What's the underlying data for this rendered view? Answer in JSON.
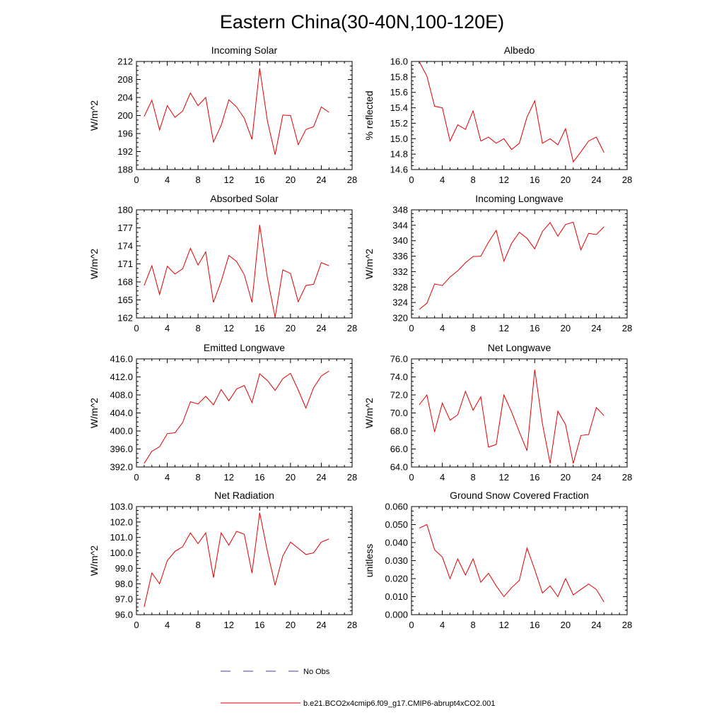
{
  "page_title": "Eastern China(30-40N,100-120E)",
  "legend": {
    "obs_label": "No Obs",
    "obs_color": "#3b3bb8",
    "model_label": "b.e21.BCO2x4cmip6.f09_g17.CMIP6-abrupt4xCO2.001",
    "model_color": "#e00000"
  },
  "chart_data": [
    {
      "type": "line",
      "title": "Incoming Solar",
      "ylabel": "W/m^2",
      "xlim": [
        0,
        28
      ],
      "ylim": [
        188,
        212
      ],
      "xticks": [
        0,
        4,
        8,
        12,
        16,
        20,
        24,
        28
      ],
      "xtick_labels": [
        "0",
        "4",
        "8",
        "12",
        "16",
        "20",
        "24",
        "28"
      ],
      "yticks": [
        188,
        192,
        196,
        200,
        204,
        208,
        212
      ],
      "ytick_labels": [
        "188",
        "192",
        "196",
        "200",
        "204",
        "208",
        "212"
      ],
      "x": [
        1,
        2,
        3,
        4,
        5,
        6,
        7,
        8,
        9,
        10,
        11,
        12,
        13,
        14,
        15,
        16,
        17,
        18,
        19,
        20,
        21,
        22,
        23,
        24,
        25
      ],
      "values": [
        199.8,
        203.4,
        196.8,
        202.2,
        199.6,
        201.0,
        205.0,
        202.2,
        204.0,
        194.1,
        197.8,
        203.5,
        201.9,
        199.4,
        194.7,
        210.5,
        198.8,
        191.3,
        200.1,
        200.0,
        193.5,
        196.9,
        197.5,
        201.9,
        200.7
      ]
    },
    {
      "type": "line",
      "title": "Albedo",
      "ylabel": "% reflected",
      "xlim": [
        0,
        28
      ],
      "ylim": [
        14.6,
        16.0
      ],
      "xticks": [
        0,
        4,
        8,
        12,
        16,
        20,
        24,
        28
      ],
      "xtick_labels": [
        "0",
        "4",
        "8",
        "12",
        "16",
        "20",
        "24",
        "28"
      ],
      "yticks": [
        14.6,
        14.8,
        15.0,
        15.2,
        15.4,
        15.6,
        15.8,
        16.0
      ],
      "ytick_labels": [
        "14.6",
        "14.8",
        "15.0",
        "15.2",
        "15.4",
        "15.6",
        "15.8",
        "16.0"
      ],
      "x": [
        1,
        2,
        3,
        4,
        5,
        6,
        7,
        8,
        9,
        10,
        11,
        12,
        13,
        14,
        15,
        16,
        17,
        18,
        19,
        20,
        21,
        22,
        23,
        24,
        25
      ],
      "values": [
        16.0,
        15.81,
        15.42,
        15.4,
        14.97,
        15.18,
        15.12,
        15.36,
        14.97,
        15.02,
        14.94,
        15.0,
        14.86,
        14.94,
        15.28,
        15.49,
        14.94,
        15.0,
        14.92,
        15.13,
        14.7,
        14.83,
        14.97,
        15.02,
        14.82
      ]
    },
    {
      "type": "line",
      "title": "Absorbed Solar",
      "ylabel": "W/m^2",
      "xlim": [
        0,
        28
      ],
      "ylim": [
        162,
        180
      ],
      "xticks": [
        0,
        4,
        8,
        12,
        16,
        20,
        24,
        28
      ],
      "xtick_labels": [
        "0",
        "4",
        "8",
        "12",
        "16",
        "20",
        "24",
        "28"
      ],
      "yticks": [
        162,
        165,
        168,
        171,
        174,
        177,
        180
      ],
      "ytick_labels": [
        "162",
        "165",
        "168",
        "171",
        "174",
        "177",
        "180"
      ],
      "x": [
        1,
        2,
        3,
        4,
        5,
        6,
        7,
        8,
        9,
        10,
        11,
        12,
        13,
        14,
        15,
        16,
        17,
        18,
        19,
        20,
        21,
        22,
        23,
        24,
        25
      ],
      "values": [
        167.4,
        170.7,
        165.9,
        170.6,
        169.3,
        170.2,
        173.6,
        170.8,
        173.0,
        164.6,
        168.1,
        172.4,
        171.4,
        169.2,
        164.6,
        177.5,
        168.7,
        162.1,
        170.0,
        169.4,
        164.7,
        167.4,
        167.6,
        171.2,
        170.7
      ]
    },
    {
      "type": "line",
      "title": "Incoming Longwave",
      "ylabel": "W/m^2",
      "xlim": [
        0,
        28
      ],
      "ylim": [
        320,
        348
      ],
      "xticks": [
        0,
        4,
        8,
        12,
        16,
        20,
        24,
        28
      ],
      "xtick_labels": [
        "0",
        "4",
        "8",
        "12",
        "16",
        "20",
        "24",
        "28"
      ],
      "yticks": [
        320,
        324,
        328,
        332,
        336,
        340,
        344,
        348
      ],
      "ytick_labels": [
        "320",
        "324",
        "328",
        "332",
        "336",
        "340",
        "344",
        "348"
      ],
      "x": [
        1,
        2,
        3,
        4,
        5,
        6,
        7,
        8,
        9,
        10,
        11,
        12,
        13,
        14,
        15,
        16,
        17,
        18,
        19,
        20,
        21,
        22,
        23,
        24,
        25
      ],
      "values": [
        322.2,
        323.8,
        328.8,
        328.4,
        330.6,
        332.2,
        334.3,
        335.9,
        336.0,
        339.6,
        342.7,
        334.7,
        339.3,
        342.2,
        340.6,
        337.9,
        342.4,
        344.7,
        341.2,
        344.2,
        344.8,
        337.6,
        341.9,
        341.6,
        343.6
      ]
    },
    {
      "type": "line",
      "title": "Emitted Longwave",
      "ylabel": "W/m^2",
      "xlim": [
        0,
        28
      ],
      "ylim": [
        392,
        416
      ],
      "xticks": [
        0,
        4,
        8,
        12,
        16,
        20,
        24,
        28
      ],
      "xtick_labels": [
        "0",
        "4",
        "8",
        "12",
        "16",
        "20",
        "24",
        "28"
      ],
      "yticks": [
        392,
        396,
        400,
        404,
        408,
        412,
        416
      ],
      "ytick_labels": [
        "392.0",
        "396.0",
        "400.0",
        "404.0",
        "408.0",
        "412.0",
        "416.0"
      ],
      "x": [
        1,
        2,
        3,
        4,
        5,
        6,
        7,
        8,
        9,
        10,
        11,
        12,
        13,
        14,
        15,
        16,
        17,
        18,
        19,
        20,
        21,
        22,
        23,
        24,
        25
      ],
      "values": [
        392.8,
        395.5,
        396.5,
        399.4,
        399.6,
        401.9,
        406.5,
        406.0,
        407.7,
        405.8,
        409.2,
        406.7,
        409.3,
        410.1,
        406.3,
        412.7,
        411.2,
        409.0,
        411.6,
        412.8,
        409.1,
        405.1,
        409.6,
        412.2,
        413.3
      ]
    },
    {
      "type": "line",
      "title": "Net Longwave",
      "ylabel": "W/m^2",
      "xlim": [
        0,
        28
      ],
      "ylim": [
        64,
        76
      ],
      "xticks": [
        0,
        4,
        8,
        12,
        16,
        20,
        24,
        28
      ],
      "xtick_labels": [
        "0",
        "4",
        "8",
        "12",
        "16",
        "20",
        "24",
        "28"
      ],
      "yticks": [
        64,
        66,
        68,
        70,
        72,
        74,
        76
      ],
      "ytick_labels": [
        "64.0",
        "66.0",
        "68.0",
        "70.0",
        "72.0",
        "74.0",
        "76.0"
      ],
      "x": [
        1,
        2,
        3,
        4,
        5,
        6,
        7,
        8,
        9,
        10,
        11,
        12,
        13,
        14,
        15,
        16,
        17,
        18,
        19,
        20,
        21,
        22,
        23,
        24,
        25
      ],
      "values": [
        70.9,
        72.0,
        67.9,
        71.1,
        69.2,
        69.8,
        72.4,
        70.3,
        71.8,
        66.2,
        66.5,
        72.0,
        70.1,
        67.9,
        65.8,
        74.8,
        68.8,
        64.4,
        70.2,
        68.7,
        64.4,
        67.5,
        67.6,
        70.6,
        69.7
      ]
    },
    {
      "type": "line",
      "title": "Net Radiation",
      "ylabel": "W/m^2",
      "xlim": [
        0,
        28
      ],
      "ylim": [
        96,
        103
      ],
      "xticks": [
        0,
        4,
        8,
        12,
        16,
        20,
        24,
        28
      ],
      "xtick_labels": [
        "0",
        "4",
        "8",
        "12",
        "16",
        "20",
        "24",
        "28"
      ],
      "yticks": [
        96,
        97,
        98,
        99,
        100,
        101,
        102,
        103
      ],
      "ytick_labels": [
        "96.0",
        "97.0",
        "98.0",
        "99.0",
        "100.0",
        "101.0",
        "102.0",
        "103.0"
      ],
      "x": [
        1,
        2,
        3,
        4,
        5,
        6,
        7,
        8,
        9,
        10,
        11,
        12,
        13,
        14,
        15,
        16,
        17,
        18,
        19,
        20,
        21,
        22,
        23,
        24,
        25
      ],
      "values": [
        96.5,
        98.7,
        98.0,
        99.5,
        100.1,
        100.4,
        101.3,
        100.6,
        101.3,
        98.4,
        101.3,
        100.5,
        101.4,
        101.2,
        98.7,
        102.6,
        100.1,
        97.9,
        99.8,
        100.7,
        100.3,
        99.9,
        100.0,
        100.7,
        100.9
      ]
    },
    {
      "type": "line",
      "title": "Ground Snow Covered Fraction",
      "ylabel": "unitless",
      "xlim": [
        0,
        28
      ],
      "ylim": [
        0.0,
        0.06
      ],
      "xticks": [
        0,
        4,
        8,
        12,
        16,
        20,
        24,
        28
      ],
      "xtick_labels": [
        "0",
        "4",
        "8",
        "12",
        "16",
        "20",
        "24",
        "28"
      ],
      "yticks": [
        0.0,
        0.01,
        0.02,
        0.03,
        0.04,
        0.05,
        0.06
      ],
      "ytick_labels": [
        "0.000",
        "0.010",
        "0.020",
        "0.030",
        "0.040",
        "0.050",
        "0.060"
      ],
      "x": [
        1,
        2,
        3,
        4,
        5,
        6,
        7,
        8,
        9,
        10,
        11,
        12,
        13,
        14,
        15,
        16,
        17,
        18,
        19,
        20,
        21,
        22,
        23,
        24,
        25
      ],
      "values": [
        0.048,
        0.05,
        0.036,
        0.032,
        0.02,
        0.031,
        0.022,
        0.031,
        0.018,
        0.023,
        0.016,
        0.01,
        0.015,
        0.019,
        0.037,
        0.025,
        0.012,
        0.016,
        0.01,
        0.02,
        0.011,
        0.014,
        0.017,
        0.014,
        0.007
      ]
    }
  ]
}
